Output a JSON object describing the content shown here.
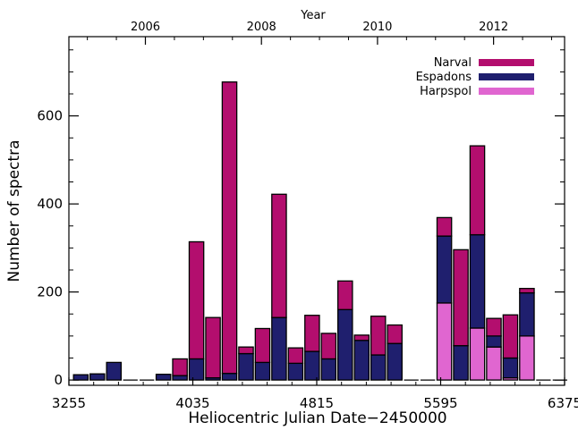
{
  "chart_data": {
    "type": "bar",
    "stacked": true,
    "xlabel": "Heliocentric Julian Date−2450000",
    "ylabel": "Number of spectra",
    "top_axis_label": "Year",
    "xlim": [
      3255,
      6375
    ],
    "ylim": [
      -12,
      780
    ],
    "x_ticks": [
      3255,
      4035,
      4815,
      5595,
      6375
    ],
    "x_ticks_text": [
      "3255",
      "4035",
      "4815",
      "5595",
      "6375"
    ],
    "y_ticks": [
      0,
      200,
      400,
      600
    ],
    "y_ticks_text": [
      "0",
      "200",
      "400",
      "600"
    ],
    "top_ticks": [
      2006,
      2008,
      2010,
      2012
    ],
    "top_ticks_text": [
      "2006",
      "2008",
      "2010",
      "2012"
    ],
    "legend_position": "top-right",
    "bin_width": 104,
    "x": [
      3330,
      3434,
      3538,
      3642,
      3746,
      3850,
      3954,
      4058,
      4162,
      4266,
      4370,
      4474,
      4578,
      4682,
      4786,
      4890,
      4994,
      5098,
      5202,
      5306,
      5410,
      5514,
      5618,
      5722,
      5826,
      5930,
      6034,
      6138,
      6242,
      6346
    ],
    "series": [
      {
        "name": "Harpspol",
        "color": "#e066d0",
        "values": [
          0,
          0,
          0,
          0,
          0,
          0,
          0,
          0,
          0,
          0,
          0,
          0,
          0,
          0,
          0,
          0,
          0,
          0,
          0,
          0,
          0,
          0,
          175,
          0,
          118,
          75,
          5,
          100,
          0,
          0
        ]
      },
      {
        "name": "Espadons",
        "color": "#1f1f6e",
        "values": [
          12,
          14,
          40,
          0,
          0,
          13,
          10,
          48,
          5,
          15,
          60,
          40,
          142,
          38,
          65,
          48,
          160,
          90,
          57,
          83,
          0,
          0,
          152,
          78,
          212,
          25,
          45,
          98,
          0,
          0
        ]
      },
      {
        "name": "Narval",
        "color": "#b30e6e",
        "values": [
          0,
          0,
          0,
          0,
          0,
          0,
          38,
          266,
          137,
          662,
          15,
          77,
          280,
          35,
          82,
          58,
          65,
          12,
          88,
          42,
          0,
          0,
          42,
          218,
          202,
          40,
          98,
          10,
          0,
          0
        ]
      }
    ],
    "legend": [
      {
        "label": "Narval",
        "color": "#b30e6e"
      },
      {
        "label": "Espadons",
        "color": "#1f1f6e"
      },
      {
        "label": "Harpspol",
        "color": "#e066d0"
      }
    ]
  }
}
